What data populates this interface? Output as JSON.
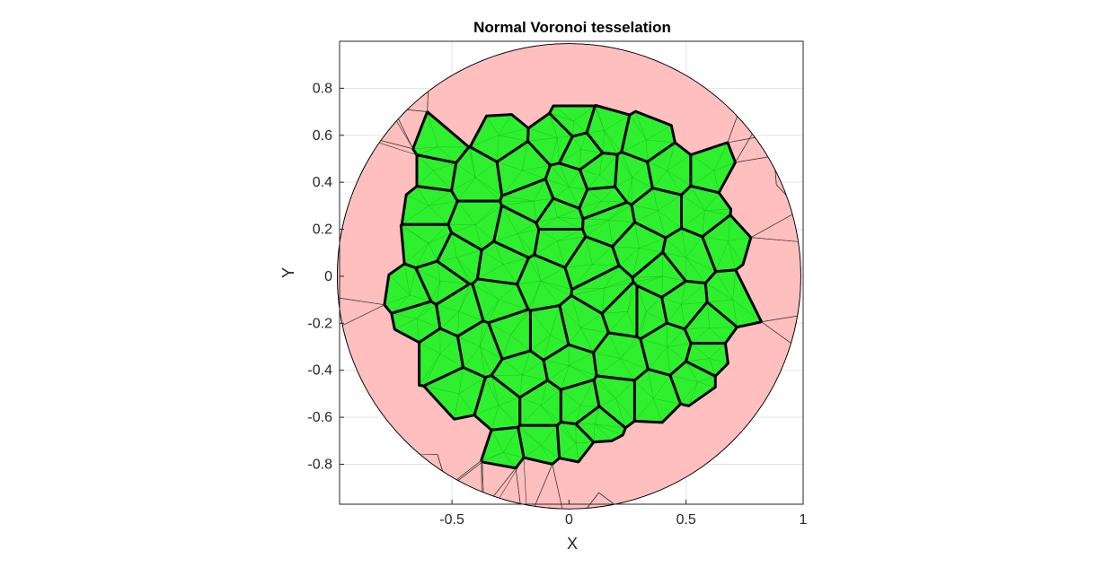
{
  "chart_data": {
    "type": "voronoi-tessellation",
    "title": "Normal Voronoi tesselation",
    "xlabel": "X",
    "ylabel": "Y",
    "xlim": [
      -0.98,
      1.0
    ],
    "ylim": [
      -0.97,
      1.0
    ],
    "xticks": [
      -0.5,
      0,
      0.5,
      1
    ],
    "xtick_labels": [
      "-0.5",
      "0",
      "0.5",
      "1"
    ],
    "yticks": [
      -0.8,
      -0.6,
      -0.4,
      -0.2,
      0,
      0.2,
      0.4,
      0.6,
      0.8
    ],
    "ytick_labels": [
      "-0.8",
      "-0.6",
      "-0.4",
      "-0.2",
      "0",
      "0.2",
      "0.4",
      "0.6",
      "0.8"
    ],
    "grid": true,
    "domain": {
      "shape": "circle",
      "center": [
        0.0,
        0.0
      ],
      "radius": 0.99
    },
    "colors": {
      "cell_fill": "#2ef02e",
      "border_fill": "#ffbfbf",
      "cell_edge": "#000000",
      "mesh_line": "#10a010",
      "grid": "#e3e3e3"
    },
    "seeds": [
      [
        -0.74,
        0.62
      ],
      [
        -0.56,
        0.55
      ],
      [
        -0.45,
        0.68
      ],
      [
        -0.31,
        0.77
      ],
      [
        -0.17,
        0.76
      ],
      [
        0.02,
        0.79
      ],
      [
        0.2,
        0.8
      ],
      [
        0.4,
        0.76
      ],
      [
        0.56,
        0.63
      ],
      [
        -0.3,
        0.6
      ],
      [
        -0.05,
        0.59
      ],
      [
        0.02,
        0.66
      ],
      [
        0.05,
        0.54
      ],
      [
        0.15,
        0.62
      ],
      [
        0.33,
        0.58
      ],
      [
        -0.72,
        0.45
      ],
      [
        -0.58,
        0.45
      ],
      [
        -0.8,
        0.33
      ],
      [
        -0.6,
        0.3
      ],
      [
        -0.4,
        0.42
      ],
      [
        -0.2,
        0.45
      ],
      [
        0.0,
        0.38
      ],
      [
        0.13,
        0.43
      ],
      [
        0.27,
        0.42
      ],
      [
        0.42,
        0.45
      ],
      [
        0.62,
        0.45
      ],
      [
        0.73,
        0.39
      ],
      [
        0.8,
        0.26
      ],
      [
        0.58,
        0.28
      ],
      [
        0.38,
        0.28
      ],
      [
        0.14,
        0.32
      ],
      [
        0.17,
        0.24
      ],
      [
        -0.05,
        0.15
      ],
      [
        -0.22,
        0.18
      ],
      [
        -0.4,
        0.22
      ],
      [
        -0.6,
        0.14
      ],
      [
        -0.82,
        0.12
      ],
      [
        -0.88,
        -0.05
      ],
      [
        -0.68,
        -0.08
      ],
      [
        -0.48,
        0.08
      ],
      [
        -0.28,
        0.05
      ],
      [
        -0.12,
        -0.02
      ],
      [
        0.1,
        0.05
      ],
      [
        0.3,
        0.12
      ],
      [
        0.5,
        0.08
      ],
      [
        0.68,
        0.15
      ],
      [
        0.82,
        -0.04
      ],
      [
        0.7,
        -0.1
      ],
      [
        0.48,
        -0.12
      ],
      [
        0.33,
        -0.15
      ],
      [
        0.15,
        -0.05
      ],
      [
        0.05,
        -0.22
      ],
      [
        -0.08,
        -0.25
      ],
      [
        -0.25,
        -0.25
      ],
      [
        -0.47,
        -0.15
      ],
      [
        -0.65,
        -0.18
      ],
      [
        -0.85,
        -0.22
      ],
      [
        -0.73,
        -0.33
      ],
      [
        -0.55,
        -0.33
      ],
      [
        -0.38,
        -0.3
      ],
      [
        -0.2,
        -0.42
      ],
      [
        0.0,
        -0.38
      ],
      [
        0.22,
        -0.35
      ],
      [
        0.42,
        -0.3
      ],
      [
        0.6,
        -0.22
      ],
      [
        0.75,
        -0.33
      ],
      [
        0.55,
        -0.45
      ],
      [
        0.36,
        -0.52
      ],
      [
        0.2,
        -0.52
      ],
      [
        0.05,
        -0.55
      ],
      [
        -0.12,
        -0.55
      ],
      [
        -0.3,
        -0.55
      ],
      [
        -0.47,
        -0.5
      ],
      [
        -0.6,
        -0.62
      ],
      [
        -0.43,
        -0.7
      ],
      [
        -0.28,
        -0.75
      ],
      [
        -0.12,
        -0.72
      ],
      [
        0.03,
        -0.71
      ],
      [
        0.11,
        -0.63
      ],
      [
        0.2,
        -0.8
      ],
      [
        0.35,
        -0.72
      ],
      [
        0.5,
        -0.66
      ],
      [
        0.62,
        -0.55
      ],
      [
        0.7,
        -0.45
      ],
      [
        -0.45,
        -0.85
      ],
      [
        -0.3,
        -0.86
      ],
      [
        -0.15,
        -0.85
      ],
      [
        0.0,
        -0.86
      ],
      [
        0.12,
        -0.78
      ],
      [
        0.8,
        0.52
      ],
      [
        0.85,
        0.1
      ],
      [
        0.25,
        -0.15
      ],
      [
        -0.3,
        -0.1
      ],
      [
        -0.05,
        0.25
      ],
      [
        0.4,
        0.0
      ],
      [
        -0.55,
        -0.02
      ],
      [
        0.6,
        -0.35
      ],
      [
        -0.15,
        0.32
      ]
    ]
  }
}
